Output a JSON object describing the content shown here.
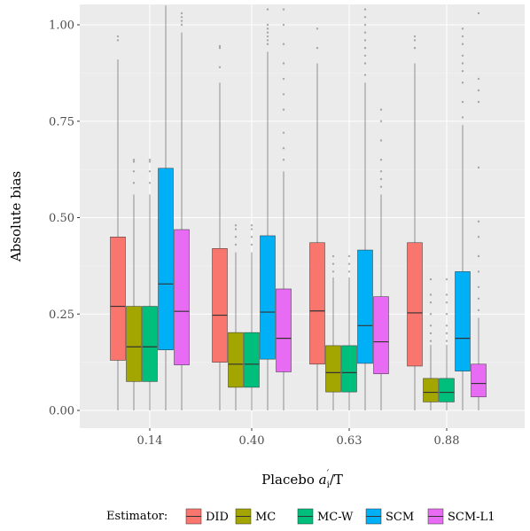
{
  "chart_data": {
    "type": "boxplot",
    "xlabel": "Placebo",
    "xlabel_math": "a",
    "xlabel_math_sub": "i",
    "xlabel_math_sup": "´",
    "xlabel_suffix": "/T",
    "ylabel": "Absolute bias",
    "ylim": [
      0,
      1.05
    ],
    "y_ticks": [
      "0.00",
      "0.25",
      "0.50",
      "0.75",
      "1.00"
    ],
    "y_tick_values": [
      0,
      0.25,
      0.5,
      0.75,
      1.0
    ],
    "categories": [
      "0.14",
      "0.40",
      "0.63",
      "0.88"
    ],
    "grid": true,
    "legend_position": "bottom",
    "legend_title": "Estimator:",
    "series": [
      {
        "name": "DID",
        "color": "#F8766D",
        "boxes": [
          {
            "min": 0.0,
            "q1": 0.13,
            "median": 0.27,
            "q3": 0.45,
            "max": 0.91,
            "outliers": [
              0.96,
              0.97
            ]
          },
          {
            "min": 0.0,
            "q1": 0.125,
            "median": 0.247,
            "q3": 0.42,
            "max": 0.85,
            "outliers": [
              0.89,
              0.94,
              0.945
            ]
          },
          {
            "min": 0.0,
            "q1": 0.12,
            "median": 0.258,
            "q3": 0.435,
            "max": 0.9,
            "outliers": [
              0.94,
              0.99
            ]
          },
          {
            "min": 0.0,
            "q1": 0.115,
            "median": 0.253,
            "q3": 0.435,
            "max": 0.9,
            "outliers": [
              0.94,
              0.96,
              0.97
            ]
          }
        ]
      },
      {
        "name": "MC",
        "color": "#A3A500",
        "boxes": [
          {
            "min": 0.0,
            "q1": 0.075,
            "median": 0.165,
            "q3": 0.27,
            "max": 0.56,
            "outliers": [
              0.59,
              0.62,
              0.645,
              0.65
            ]
          },
          {
            "min": 0.0,
            "q1": 0.06,
            "median": 0.12,
            "q3": 0.202,
            "max": 0.41,
            "outliers": [
              0.43,
              0.45,
              0.47,
              0.48
            ]
          },
          {
            "min": 0.0,
            "q1": 0.048,
            "median": 0.098,
            "q3": 0.168,
            "max": 0.345,
            "outliers": [
              0.36,
              0.38,
              0.4
            ]
          },
          {
            "min": 0.0,
            "q1": 0.022,
            "median": 0.047,
            "q3": 0.083,
            "max": 0.17,
            "outliers": [
              0.18,
              0.2,
              0.22,
              0.25,
              0.28,
              0.3,
              0.34
            ]
          }
        ]
      },
      {
        "name": "MC-W",
        "color": "#00BF7D",
        "boxes": [
          {
            "min": 0.0,
            "q1": 0.075,
            "median": 0.165,
            "q3": 0.27,
            "max": 0.56,
            "outliers": [
              0.59,
              0.62,
              0.645,
              0.65
            ]
          },
          {
            "min": 0.0,
            "q1": 0.06,
            "median": 0.12,
            "q3": 0.202,
            "max": 0.41,
            "outliers": [
              0.43,
              0.45,
              0.47,
              0.48
            ]
          },
          {
            "min": 0.0,
            "q1": 0.048,
            "median": 0.098,
            "q3": 0.168,
            "max": 0.345,
            "outliers": [
              0.36,
              0.38,
              0.4
            ]
          },
          {
            "min": 0.0,
            "q1": 0.022,
            "median": 0.047,
            "q3": 0.083,
            "max": 0.17,
            "outliers": [
              0.18,
              0.2,
              0.22,
              0.25,
              0.28,
              0.3,
              0.34
            ]
          }
        ]
      },
      {
        "name": "SCM",
        "color": "#00B0F6",
        "boxes": [
          {
            "min": 0.0,
            "q1": 0.157,
            "median": 0.328,
            "q3": 0.628,
            "max": 1.05,
            "outliers": []
          },
          {
            "min": 0.0,
            "q1": 0.133,
            "median": 0.255,
            "q3": 0.453,
            "max": 0.93,
            "outliers": [
              0.95,
              0.96,
              0.97,
              0.98,
              0.99,
              1.0,
              1.04
            ]
          },
          {
            "min": 0.0,
            "q1": 0.122,
            "median": 0.22,
            "q3": 0.416,
            "max": 0.85,
            "outliers": [
              0.87,
              0.9,
              0.92,
              0.94,
              0.96,
              0.98,
              1.0,
              1.02,
              1.04
            ]
          },
          {
            "min": 0.0,
            "q1": 0.102,
            "median": 0.187,
            "q3": 0.36,
            "max": 0.74,
            "outliers": [
              0.76,
              0.8,
              0.85,
              0.88,
              0.9,
              0.92,
              0.95,
              0.97,
              0.99
            ]
          }
        ]
      },
      {
        "name": "SCM-L1",
        "color": "#E76BF3",
        "boxes": [
          {
            "min": 0.0,
            "q1": 0.118,
            "median": 0.257,
            "q3": 0.469,
            "max": 0.98,
            "outliers": [
              1.0,
              1.01,
              1.02,
              1.03
            ]
          },
          {
            "min": 0.0,
            "q1": 0.1,
            "median": 0.187,
            "q3": 0.315,
            "max": 0.62,
            "outliers": [
              0.65,
              0.68,
              0.72,
              0.78,
              0.82,
              0.86,
              0.9,
              0.95,
              1.0,
              1.04
            ]
          },
          {
            "min": 0.0,
            "q1": 0.095,
            "median": 0.178,
            "q3": 0.295,
            "max": 0.56,
            "outliers": [
              0.58,
              0.6,
              0.62,
              0.65,
              0.7,
              0.75,
              0.78
            ]
          },
          {
            "min": 0.0,
            "q1": 0.035,
            "median": 0.07,
            "q3": 0.12,
            "max": 0.24,
            "outliers": [
              0.26,
              0.29,
              0.32,
              0.36,
              0.4,
              0.45,
              0.49,
              0.63,
              0.8,
              0.83,
              0.86,
              1.03
            ]
          }
        ]
      }
    ]
  }
}
